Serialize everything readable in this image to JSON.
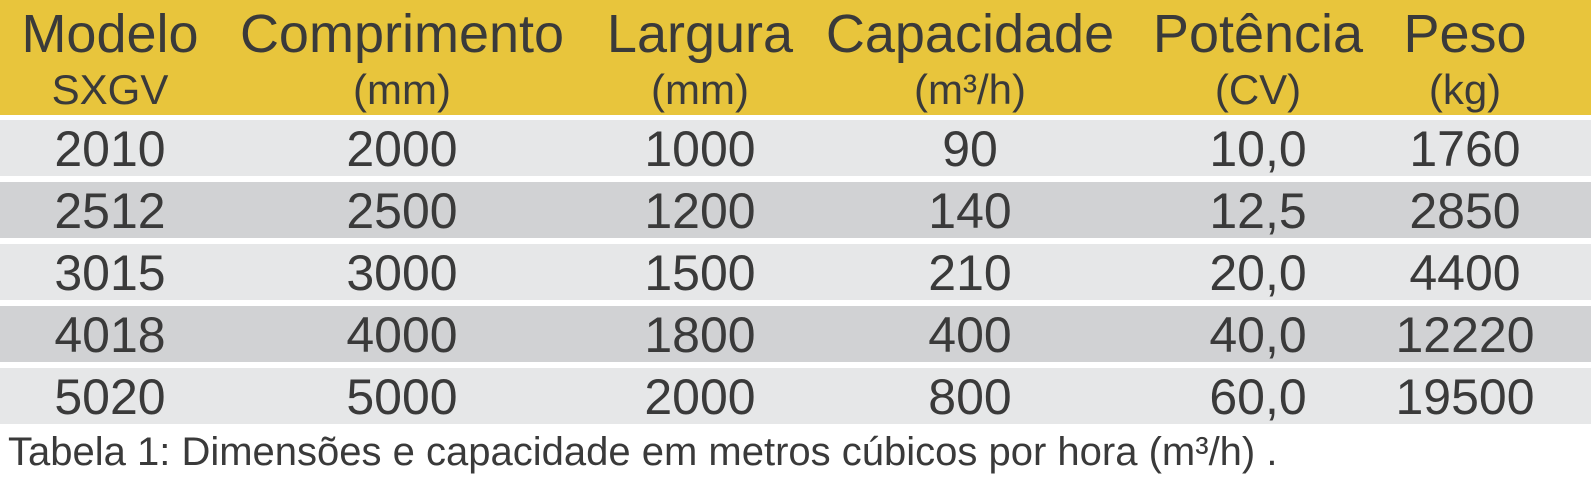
{
  "table": {
    "columns": [
      {
        "name": "Modelo",
        "unit": "SXGV"
      },
      {
        "name": "Comprimento",
        "unit": "(mm)"
      },
      {
        "name": "Largura",
        "unit": "(mm)"
      },
      {
        "name": "Capacidade",
        "unit": "(m³/h)"
      },
      {
        "name": "Potência",
        "unit": "(CV)"
      },
      {
        "name": "Peso",
        "unit": "(kg)"
      }
    ],
    "rows": [
      [
        "2010",
        "2000",
        "1000",
        "90",
        "10,0",
        "1760"
      ],
      [
        "2512",
        "2500",
        "1200",
        "140",
        "12,5",
        "2850"
      ],
      [
        "3015",
        "3000",
        "1500",
        "210",
        "20,0",
        "4400"
      ],
      [
        "4018",
        "4000",
        "1800",
        "400",
        "40,0",
        "12220"
      ],
      [
        "5020",
        "5000",
        "2000",
        "800",
        "60,0",
        "19500"
      ]
    ],
    "caption": "Tabela 1: Dimensões e capacidade em metros cúbicos por hora (m³/h) ."
  }
}
